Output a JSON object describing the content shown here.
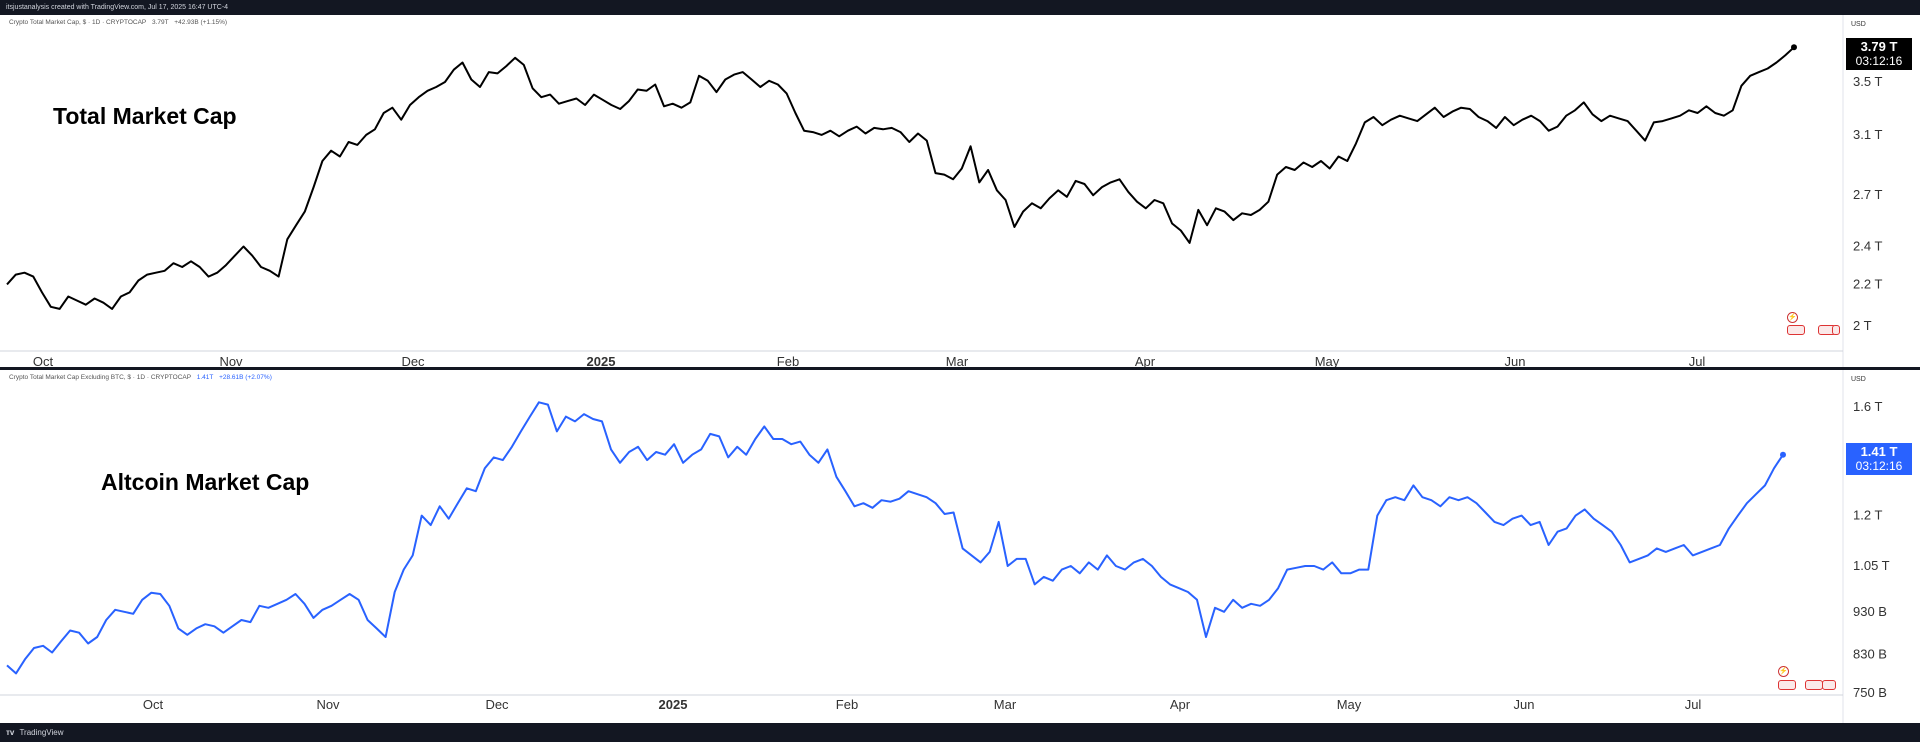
{
  "header": {
    "text": "itsjustanalysis created with TradingView.com, Jul 17, 2025 16:47 UTC-4"
  },
  "footer": {
    "brand": "TradingView"
  },
  "colors": {
    "pane1_line": "#000000",
    "pane2_line": "#2962ff",
    "badge1_bg": "#000000",
    "badge2_bg": "#2962ff",
    "background": "#ffffff",
    "frame": "#131722"
  },
  "pane1": {
    "legend": {
      "name": "Crypto Total Market Cap, $ · 1D · CRYPTOCAP",
      "value": "3.79T",
      "change": "+42.93B (+1.15%)"
    },
    "label": "Total Market Cap",
    "currency": "USD",
    "badge": {
      "price": "3.79 T",
      "timer": "03:12:16"
    },
    "icons": [
      "lightning-icon",
      "flag-marker-icon"
    ]
  },
  "pane2": {
    "legend": {
      "name": "Crypto Total Market Cap Excluding BTC, $ · 1D · CRYPTOCAP",
      "value": "1.41T",
      "change": "+28.61B (+2.07%)"
    },
    "label": "Altcoin Market Cap",
    "currency": "USD",
    "badge": {
      "price": "1.41 T",
      "timer": "03:12:16"
    },
    "icons": [
      "lightning-icon",
      "flag-marker-icon"
    ]
  },
  "chart_data": [
    {
      "type": "line",
      "scale": "log",
      "series": [
        {
          "y": [
            2.2,
            2.25,
            2.26,
            2.24,
            2.16,
            2.09,
            2.08,
            2.14,
            2.12,
            2.1,
            2.13,
            2.11,
            2.08,
            2.14,
            2.16,
            2.22,
            2.25,
            2.26,
            2.27,
            2.31,
            2.29,
            2.32,
            2.29,
            2.24,
            2.26,
            2.3,
            2.35,
            2.4,
            2.35,
            2.29,
            2.27,
            2.24,
            2.44,
            2.52,
            2.6,
            2.75,
            2.92,
            2.99,
            2.95,
            3.05,
            3.03,
            3.1,
            3.14,
            3.26,
            3.3,
            3.21,
            3.32,
            3.38,
            3.43,
            3.46,
            3.5,
            3.6,
            3.66,
            3.52,
            3.46,
            3.58,
            3.57,
            3.63,
            3.7,
            3.64,
            3.45,
            3.38,
            3.4,
            3.33,
            3.35,
            3.37,
            3.32,
            3.4,
            3.36,
            3.32,
            3.29,
            3.35,
            3.44,
            3.43,
            3.48,
            3.31,
            3.33,
            3.3,
            3.34,
            3.55,
            3.51,
            3.42,
            3.52,
            3.56,
            3.58,
            3.52,
            3.46,
            3.51,
            3.48,
            3.41,
            3.26,
            3.13,
            3.12,
            3.1,
            3.13,
            3.09,
            3.13,
            3.16,
            3.11,
            3.15,
            3.14,
            3.15,
            3.12,
            3.05,
            3.11,
            3.06,
            2.84,
            2.83,
            2.8,
            2.87,
            3.02,
            2.78,
            2.86,
            2.73,
            2.67,
            2.51,
            2.6,
            2.65,
            2.62,
            2.68,
            2.73,
            2.69,
            2.79,
            2.77,
            2.7,
            2.75,
            2.78,
            2.8,
            2.72,
            2.66,
            2.62,
            2.67,
            2.65,
            2.53,
            2.49,
            2.42,
            2.61,
            2.52,
            2.62,
            2.6,
            2.55,
            2.59,
            2.58,
            2.61,
            2.66,
            2.83,
            2.88,
            2.86,
            2.91,
            2.88,
            2.92,
            2.87,
            2.95,
            2.92,
            3.04,
            3.19,
            3.23,
            3.17,
            3.21,
            3.24,
            3.22,
            3.2,
            3.25,
            3.3,
            3.23,
            3.27,
            3.3,
            3.29,
            3.23,
            3.2,
            3.15,
            3.23,
            3.17,
            3.21,
            3.24,
            3.2,
            3.13,
            3.16,
            3.24,
            3.28,
            3.34,
            3.25,
            3.2,
            3.24,
            3.22,
            3.2,
            3.13,
            3.06,
            3.19,
            3.2,
            3.22,
            3.24,
            3.28,
            3.26,
            3.31,
            3.26,
            3.24,
            3.28,
            3.47,
            3.55,
            3.58,
            3.61,
            3.66,
            3.72,
            3.79
          ]
        }
      ],
      "x_ticks": [
        "Oct",
        "Nov",
        "Dec",
        "2025",
        "Feb",
        "Mar",
        "Apr",
        "May",
        "Jun",
        "Jul"
      ],
      "y_ticks": [
        "3.5 T",
        "3.1 T",
        "2.7 T",
        "2.4 T",
        "2.2 T",
        "2 T"
      ],
      "grid": false
    },
    {
      "type": "line",
      "scale": "log",
      "series": [
        {
          "y": [
            0.807,
            0.79,
            0.82,
            0.845,
            0.85,
            0.835,
            0.86,
            0.885,
            0.88,
            0.855,
            0.87,
            0.91,
            0.935,
            0.93,
            0.925,
            0.96,
            0.978,
            0.975,
            0.945,
            0.89,
            0.875,
            0.89,
            0.9,
            0.895,
            0.88,
            0.895,
            0.91,
            0.905,
            0.945,
            0.94,
            0.95,
            0.96,
            0.975,
            0.95,
            0.915,
            0.935,
            0.945,
            0.96,
            0.975,
            0.96,
            0.91,
            0.89,
            0.87,
            0.98,
            1.04,
            1.08,
            1.2,
            1.17,
            1.23,
            1.19,
            1.24,
            1.29,
            1.28,
            1.36,
            1.4,
            1.39,
            1.44,
            1.5,
            1.56,
            1.62,
            1.61,
            1.5,
            1.56,
            1.54,
            1.57,
            1.55,
            1.54,
            1.43,
            1.38,
            1.42,
            1.44,
            1.39,
            1.42,
            1.41,
            1.45,
            1.38,
            1.41,
            1.43,
            1.49,
            1.48,
            1.4,
            1.44,
            1.41,
            1.47,
            1.52,
            1.47,
            1.47,
            1.45,
            1.46,
            1.41,
            1.38,
            1.43,
            1.33,
            1.28,
            1.23,
            1.24,
            1.225,
            1.25,
            1.245,
            1.255,
            1.28,
            1.27,
            1.26,
            1.24,
            1.205,
            1.21,
            1.1,
            1.08,
            1.06,
            1.09,
            1.18,
            1.05,
            1.07,
            1.07,
            1.0,
            1.02,
            1.01,
            1.04,
            1.05,
            1.03,
            1.06,
            1.04,
            1.08,
            1.05,
            1.04,
            1.06,
            1.07,
            1.05,
            1.02,
            1.0,
            0.99,
            0.98,
            0.96,
            0.87,
            0.94,
            0.93,
            0.96,
            0.94,
            0.95,
            0.945,
            0.96,
            0.99,
            1.04,
            1.045,
            1.05,
            1.05,
            1.04,
            1.06,
            1.03,
            1.03,
            1.04,
            1.04,
            1.2,
            1.25,
            1.26,
            1.25,
            1.3,
            1.26,
            1.25,
            1.23,
            1.26,
            1.25,
            1.26,
            1.24,
            1.21,
            1.18,
            1.17,
            1.19,
            1.2,
            1.17,
            1.18,
            1.11,
            1.15,
            1.16,
            1.2,
            1.22,
            1.19,
            1.17,
            1.15,
            1.11,
            1.06,
            1.07,
            1.08,
            1.1,
            1.09,
            1.1,
            1.11,
            1.08,
            1.09,
            1.1,
            1.11,
            1.16,
            1.2,
            1.24,
            1.27,
            1.3,
            1.36,
            1.41
          ]
        }
      ],
      "x_ticks": [
        "Oct",
        "Nov",
        "Dec",
        "2025",
        "Feb",
        "Mar",
        "Apr",
        "May",
        "Jun",
        "Jul"
      ],
      "y_ticks": [
        "1.6 T",
        "1.2 T",
        "1.05 T",
        "930 B",
        "830 B",
        "750 B"
      ],
      "grid": false
    }
  ]
}
